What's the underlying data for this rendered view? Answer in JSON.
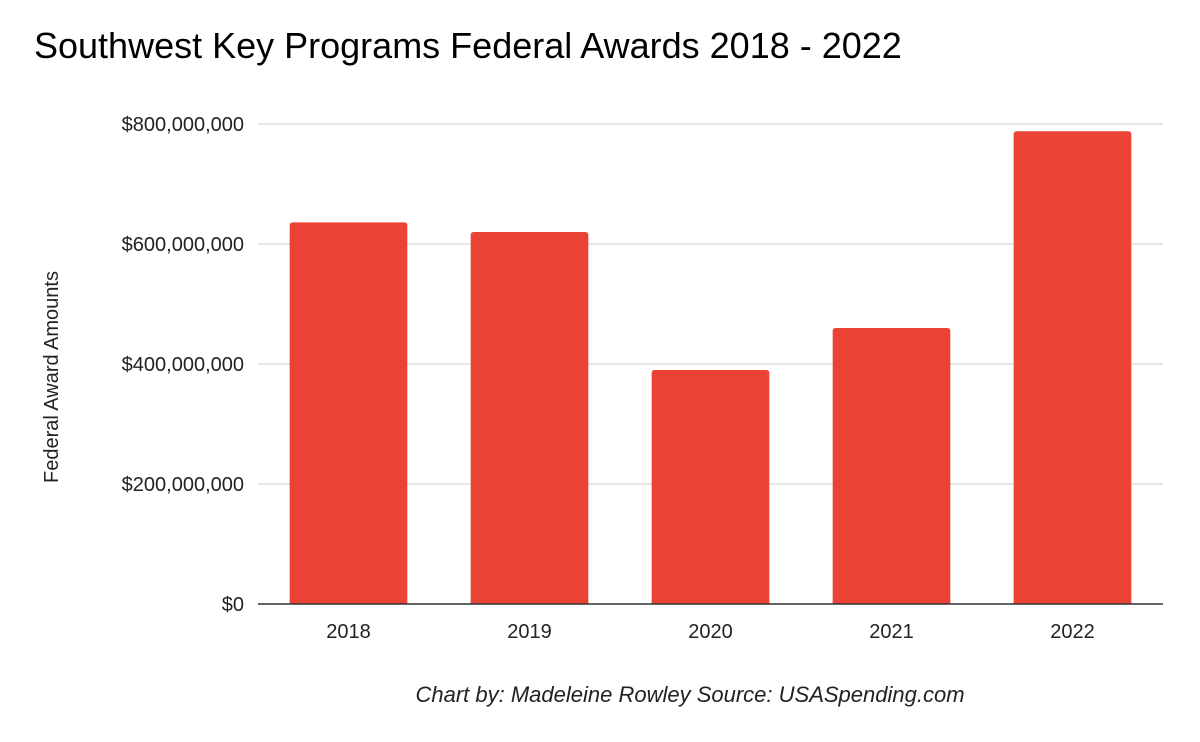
{
  "chart_data": {
    "type": "bar",
    "title": "Southwest Key Programs Federal Awards 2018 - 2022",
    "xlabel": "",
    "ylabel": "Federal Award Amounts",
    "caption": "Chart by: Madeleine Rowley Source: USASpending.com",
    "categories": [
      "2018",
      "2019",
      "2020",
      "2021",
      "2022"
    ],
    "values": [
      636000000,
      620000000,
      390000000,
      460000000,
      788000000
    ],
    "ylim": [
      0,
      800000000
    ],
    "yticks": [
      0,
      200000000,
      400000000,
      600000000,
      800000000
    ],
    "ytick_labels": [
      "$0",
      "$200,000,000",
      "$400,000,000",
      "$600,000,000",
      "$800,000,000"
    ],
    "grid": true,
    "legend": "none",
    "bar_color": "#ea4335"
  }
}
